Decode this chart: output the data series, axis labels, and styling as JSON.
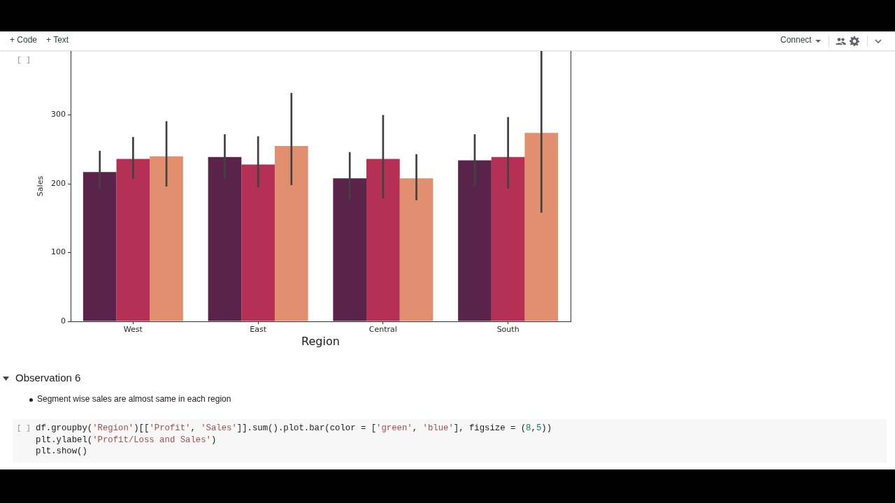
{
  "chart_data": {
    "type": "bar",
    "categories": [
      "West",
      "East",
      "Central",
      "South"
    ],
    "series": [
      {
        "color": "#5a244a",
        "values": [
          217,
          239,
          208,
          234
        ],
        "errors": [
          [
            193,
            248
          ],
          [
            207,
            272
          ],
          [
            176,
            246
          ],
          [
            197,
            272
          ]
        ]
      },
      {
        "color": "#b43155",
        "values": [
          236,
          228,
          236,
          239
        ],
        "errors": [
          [
            207,
            268
          ],
          [
            195,
            269
          ],
          [
            179,
            300
          ],
          [
            193,
            297
          ]
        ]
      },
      {
        "color": "#e18f6e",
        "values": [
          240,
          255,
          208,
          274
        ],
        "errors": [
          [
            196,
            291
          ],
          [
            198,
            332
          ],
          [
            176,
            243
          ],
          [
            158,
            393
          ]
        ]
      }
    ],
    "xlabel": "Region",
    "ylabel": "Sales",
    "ylim": [
      0,
      393
    ],
    "yticks": [
      0,
      100,
      200,
      300
    ],
    "annotations": [
      "+ Code",
      "+ Text",
      "Connect",
      "[ ]",
      "Observation 6",
      "Segment wise sales are almost same in each region",
      "[ ]",
      "df.groupby('Region')[['Profit', 'Sales']].sum().plot.bar(color = ['green', 'blue'], figsize = (8,5))",
      "plt.ylabel('Profit/Loss and Sales')",
      "plt.show()"
    ]
  }
}
